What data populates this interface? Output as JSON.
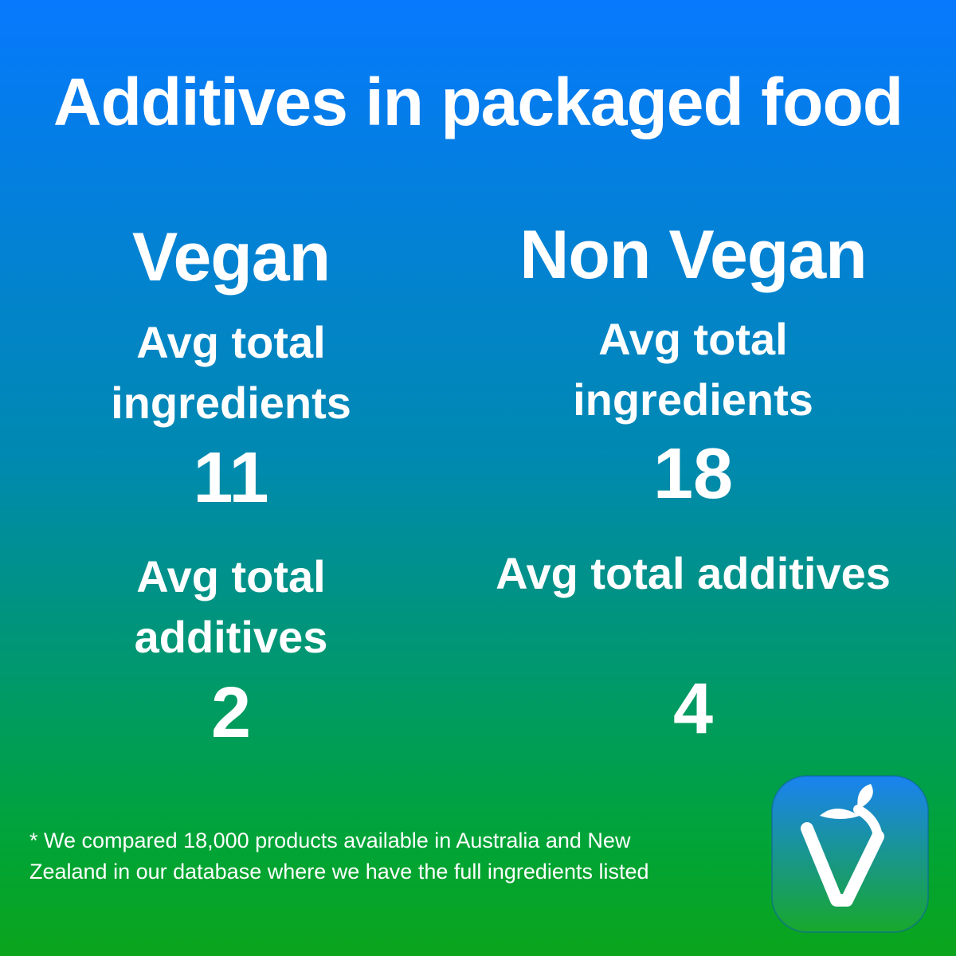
{
  "title": "Additives in packaged food",
  "columns": [
    {
      "heading": "Vegan",
      "ingredients_label": "Avg total ingredients",
      "ingredients_value": "11",
      "additives_label": "Avg total additives",
      "additives_value": "2"
    },
    {
      "heading": "Non Vegan",
      "ingredients_label": "Avg total ingredients",
      "ingredients_value": "18",
      "additives_label": "Avg total additives",
      "additives_value": "4"
    }
  ],
  "footnote": "* We compared 18,000 products available in Australia and New Zealand in our database where we have the full ingredients listed",
  "app_icon": {
    "icon": "sprout-v-icon",
    "colors": {
      "top": "#1a83f2",
      "bottom": "#18a82c",
      "glyph": "#ffffff"
    }
  },
  "colors": {
    "background_top": "#0679fd",
    "background_bottom": "#0ba41c",
    "text": "#ffffff"
  }
}
